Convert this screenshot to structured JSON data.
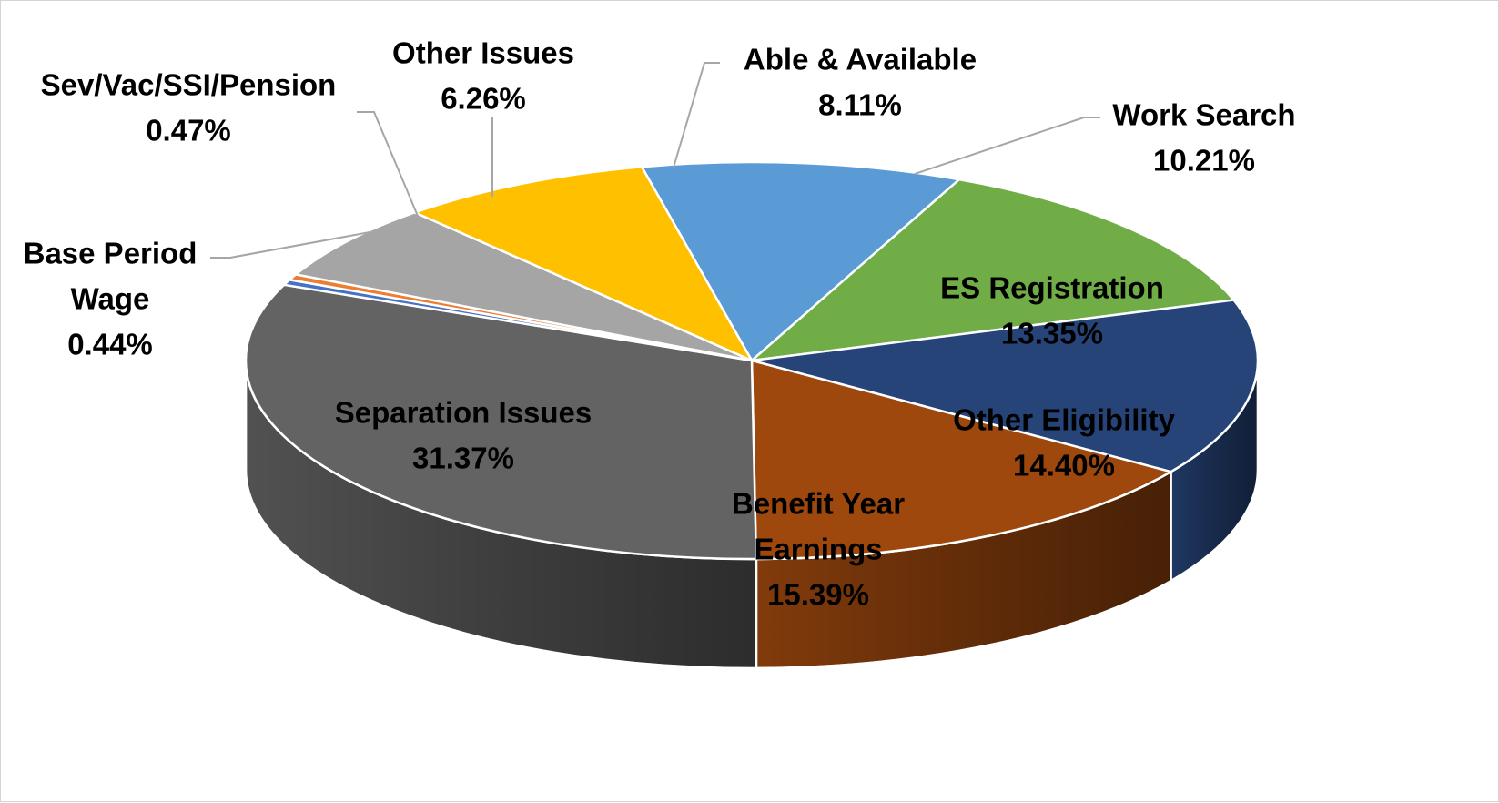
{
  "chart_data": {
    "type": "pie",
    "variant": "3d",
    "title": "",
    "slices": [
      {
        "label_lines": [
          "Work Search"
        ],
        "value": 10.21,
        "value_label": "10.21%",
        "color": "#5b9bd5"
      },
      {
        "label_lines": [
          "ES Registration"
        ],
        "value": 13.35,
        "value_label": "13.35%",
        "color": "#70ad47"
      },
      {
        "label_lines": [
          "Other Eligibility"
        ],
        "value": 14.4,
        "value_label": "14.40%",
        "color": "#264478"
      },
      {
        "label_lines": [
          "Benefit Year",
          "Earnings"
        ],
        "value": 15.39,
        "value_label": "15.39%",
        "color": "#9e480e"
      },
      {
        "label_lines": [
          "Separation Issues"
        ],
        "value": 31.37,
        "value_label": "31.37%",
        "color": "#636363"
      },
      {
        "label_lines": [
          "Base Period",
          "Wage"
        ],
        "value": 0.44,
        "value_label": "0.44%",
        "color": "#4472c4"
      },
      {
        "label_lines": [
          "Sev/Vac/SSI/Pension"
        ],
        "value": 0.47,
        "value_label": "0.47%",
        "color": "#ed7d31"
      },
      {
        "label_lines": [
          "Other Issues"
        ],
        "value": 6.26,
        "value_label": "6.26%",
        "color": "#a5a5a5"
      },
      {
        "label_lines": [
          "Able & Available"
        ],
        "value": 8.11,
        "value_label": "8.11%",
        "color": "#ffc000"
      }
    ]
  }
}
